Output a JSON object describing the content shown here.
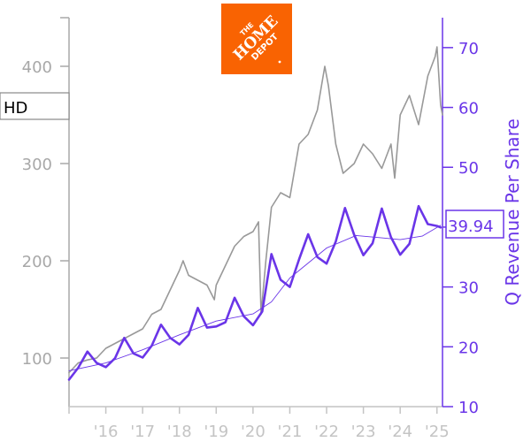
{
  "ticker": "HD",
  "logo": {
    "line1": "THE",
    "line2": "HOME",
    "line3": "DEPOT",
    "color": "#f96302"
  },
  "colors": {
    "price": "#999999",
    "revenue": "#6a35e8",
    "trend": "#6a35e8",
    "axis_left": "#a8a8a8",
    "axis_bottom": "#c4c4c4"
  },
  "chart_data": {
    "type": "line",
    "title": "",
    "xlabel": "",
    "ylabel_left": "",
    "ylabel_right": "Q Revenue Per Share",
    "x_tick_labels": [
      "'16",
      "'17",
      "'18",
      "'19",
      "'20",
      "'21",
      "'22",
      "'23",
      "'24",
      "'25"
    ],
    "xlim": [
      2015.0,
      2025.15
    ],
    "ylim_left": [
      50,
      450
    ],
    "left_ticks": [
      100,
      200,
      300,
      400
    ],
    "ylim_right": [
      10,
      75
    ],
    "right_ticks": [
      10,
      20,
      30,
      40,
      50,
      60,
      70
    ],
    "last_value_label": "39.94",
    "legend": "none",
    "grid": false,
    "series": [
      {
        "name": "",
        "axis": "left",
        "x": [
          2015.0,
          2015.25,
          2015.5,
          2015.75,
          2016.0,
          2016.25,
          2016.5,
          2016.75,
          2017.0,
          2017.25,
          2017.5,
          2017.75,
          2018.0,
          2018.1,
          2018.25,
          2018.5,
          2018.75,
          2018.95,
          2019.0,
          2019.25,
          2019.5,
          2019.75,
          2020.0,
          2020.15,
          2020.22,
          2020.35,
          2020.5,
          2020.75,
          2021.0,
          2021.25,
          2021.5,
          2021.75,
          2021.95,
          2022.05,
          2022.25,
          2022.45,
          2022.6,
          2022.75,
          2023.0,
          2023.25,
          2023.5,
          2023.75,
          2023.85,
          2024.0,
          2024.25,
          2024.5,
          2024.75,
          2024.95,
          2025.0,
          2025.1,
          2025.15
        ],
        "y": [
          85,
          95,
          98,
          100,
          110,
          115,
          120,
          125,
          130,
          145,
          150,
          170,
          190,
          200,
          185,
          180,
          175,
          160,
          175,
          195,
          215,
          225,
          230,
          240,
          145,
          200,
          255,
          270,
          265,
          320,
          330,
          355,
          400,
          380,
          320,
          290,
          295,
          300,
          320,
          310,
          295,
          320,
          285,
          350,
          370,
          340,
          390,
          410,
          420,
          360,
          350
        ]
      },
      {
        "name": "",
        "axis": "right",
        "x": [
          2015.0,
          2015.25,
          2015.5,
          2015.75,
          2016.0,
          2016.25,
          2016.5,
          2016.75,
          2017.0,
          2017.25,
          2017.5,
          2017.75,
          2018.0,
          2018.25,
          2018.5,
          2018.75,
          2019.0,
          2019.25,
          2019.5,
          2019.75,
          2020.0,
          2020.25,
          2020.5,
          2020.75,
          2021.0,
          2021.25,
          2021.5,
          2021.75,
          2022.0,
          2022.25,
          2022.5,
          2022.75,
          2023.0,
          2023.25,
          2023.5,
          2023.75,
          2024.0,
          2024.25,
          2024.5,
          2024.75,
          2025.0,
          2025.1
        ],
        "y": [
          14.5,
          16.5,
          19.2,
          17.3,
          16.6,
          18.1,
          21.5,
          18.9,
          18.2,
          20.2,
          23.7,
          21.5,
          20.4,
          22.0,
          26.5,
          23.2,
          23.4,
          24.1,
          28.2,
          25.1,
          23.6,
          25.9,
          35.5,
          31.2,
          30.0,
          34.6,
          38.8,
          35.0,
          33.9,
          37.6,
          43.2,
          38.7,
          35.3,
          37.3,
          43.1,
          38.3,
          35.4,
          37.2,
          43.5,
          40.5,
          40.2,
          39.94
        ]
      },
      {
        "name": "",
        "axis": "right",
        "style": "trend",
        "x": [
          2015.0,
          2016.0,
          2017.0,
          2018.0,
          2019.0,
          2020.0,
          2020.5,
          2021.0,
          2022.0,
          2022.8,
          2023.5,
          2024.0,
          2024.6,
          2025.1
        ],
        "y": [
          16.0,
          17.3,
          19.5,
          22.0,
          24.3,
          25.5,
          27.5,
          31.5,
          36.5,
          38.6,
          38.2,
          37.9,
          38.5,
          40.3
        ]
      }
    ]
  }
}
